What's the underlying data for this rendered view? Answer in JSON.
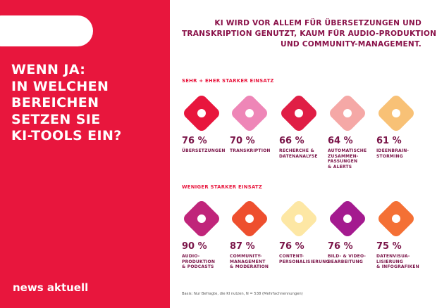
{
  "headline": [
    "WENN JA:",
    "IN WELCHEN",
    "BEREICHEN",
    "SETZEN SIE",
    "KI-TOOLS EIN?"
  ],
  "brand": "news aktuell",
  "intro": [
    "KI WIRD VOR ALLEM FÜR ÜBERSETZUNGEN UND",
    "TRANSKRIPTION GENUTZT, KAUM FÜR AUDIO-PRODUKTION",
    "UND COMMUNITY-MANAGEMENT."
  ],
  "sections": [
    {
      "title": "SEHR + EHER STARKER EINSATZ",
      "items": [
        {
          "value": "76 %",
          "label": [
            "ÜBERSETZUNGEN"
          ],
          "color": "#e8163d"
        },
        {
          "value": "70 %",
          "label": [
            "TRANSKRIPTION"
          ],
          "color": "#ee86b7"
        },
        {
          "value": "66 %",
          "label": [
            "RECHERCHE &",
            "DATENANALYSE"
          ],
          "color": "#e01e45"
        },
        {
          "value": "64 %",
          "label": [
            "AUTOMATISCHE",
            "ZUSAMMEN-",
            "FASSUNGEN",
            "& ALERTS"
          ],
          "color": "#f5a8a6"
        },
        {
          "value": "61 %",
          "label": [
            "IDEENBRAIN-",
            "STORMING"
          ],
          "color": "#f8c176"
        }
      ]
    },
    {
      "title": "WENIGER STARKER EINSATZ",
      "items": [
        {
          "value": "90 %",
          "label": [
            "AUDIO-",
            "PRODUKTION",
            "& PODCASTS"
          ],
          "color": "#c0257a"
        },
        {
          "value": "87 %",
          "label": [
            "COMMUNITY-",
            "MANAGEMENT",
            "& MODERATION"
          ],
          "color": "#ee4f2e"
        },
        {
          "value": "76 %",
          "label": [
            "CONTENT-",
            "PERSONALISIERUNG"
          ],
          "color": "#fde7a4"
        },
        {
          "value": "76 %",
          "label": [
            "BILD- & VIDEO-",
            "BEARBEITUNG"
          ],
          "color": "#a41a8f"
        },
        {
          "value": "75 %",
          "label": [
            "DATENVISUA-",
            "LISIERUNG",
            "& INFOGRAFIKEN"
          ],
          "color": "#f47035"
        }
      ]
    }
  ],
  "footnote": "Basis: Nur Befragte, die KI nutzen, N = 538 (Mehrfachnennungen)"
}
